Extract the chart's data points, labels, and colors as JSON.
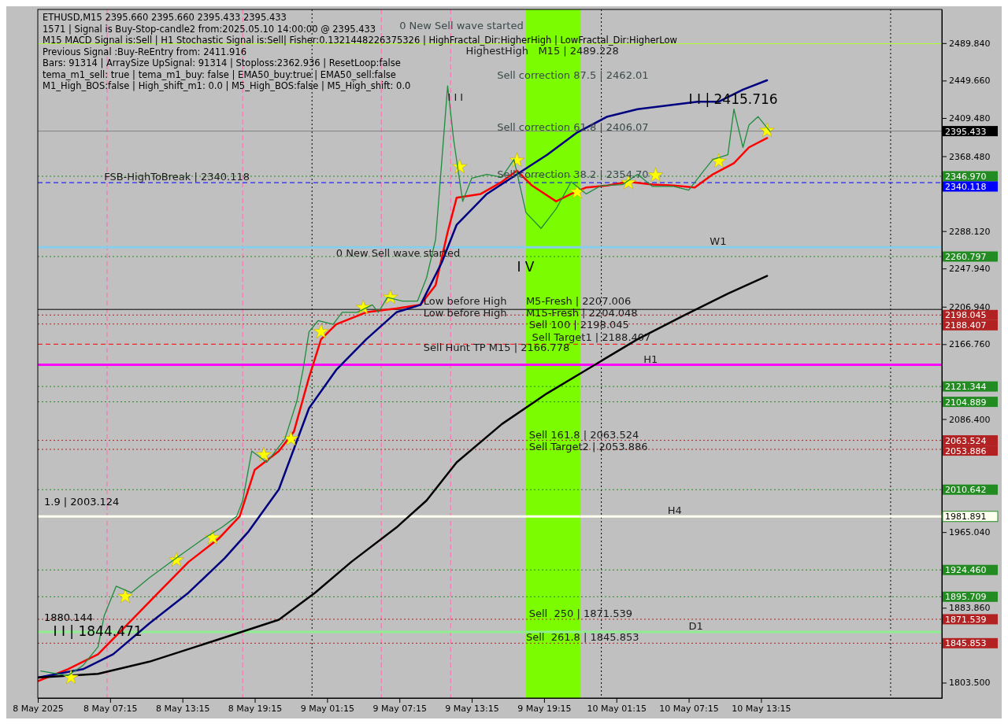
{
  "chart_data": {
    "type": "line",
    "title": "ETHUSD,M15  2395.660 2395.660 2395.433 2395.433",
    "xlim": [
      "2025-05-08T01:15",
      "2025-05-11T04:15"
    ],
    "xticks": [
      {
        "value": "2025-05-08T01:15",
        "label": "8 May 2025"
      },
      {
        "value": "2025-05-08T07:15",
        "label": "8 May 07:15"
      },
      {
        "value": "2025-05-08T13:15",
        "label": "8 May 13:15"
      },
      {
        "value": "2025-05-08T19:15",
        "label": "8 May 19:15"
      },
      {
        "value": "2025-05-09T01:15",
        "label": "9 May 01:15"
      },
      {
        "value": "2025-05-09T07:15",
        "label": "9 May 07:15"
      },
      {
        "value": "2025-05-09T13:15",
        "label": "9 May 13:15"
      },
      {
        "value": "2025-05-09T19:15",
        "label": "9 May 19:15"
      },
      {
        "value": "2025-05-10T01:15",
        "label": "10 May 01:15"
      },
      {
        "value": "2025-05-10T07:15",
        "label": "10 May 07:15"
      },
      {
        "value": "2025-05-10T13:15",
        "label": "10 May 13:15"
      }
    ],
    "ylim": [
      1787,
      2526
    ],
    "yticks": [
      {
        "value": 2489.84,
        "label": "2489.840"
      },
      {
        "value": 2449.66,
        "label": "2449.660"
      },
      {
        "value": 2409.48,
        "label": "2409.480"
      },
      {
        "value": 2368.48,
        "label": "2368.480"
      },
      {
        "value": 2288.12,
        "label": "2288.120"
      },
      {
        "value": 2247.94,
        "label": "2247.940"
      },
      {
        "value": 2206.94,
        "label": "2206.940"
      },
      {
        "value": 2166.76,
        "label": "2166.760"
      },
      {
        "value": 2086.4,
        "label": "2086.400"
      },
      {
        "value": 1965.04,
        "label": "1965.040"
      },
      {
        "value": 1883.86,
        "label": "1883.860"
      },
      {
        "value": 1803.5,
        "label": "1803.500"
      }
    ],
    "grid": false,
    "series": [
      {
        "color": "#1e8c3c",
        "x": [
          "2025-05-08T01:30",
          "2025-05-08T03:45",
          "2025-05-08T05:00",
          "2025-05-08T06:15",
          "2025-05-08T06:45",
          "2025-05-08T07:45",
          "2025-05-08T09:00",
          "2025-05-08T10:30",
          "2025-05-08T12:30",
          "2025-05-08T15:00",
          "2025-05-08T16:30",
          "2025-05-08T17:45",
          "2025-05-08T18:15",
          "2025-05-08T19:00",
          "2025-05-08T20:15",
          "2025-05-08T21:45",
          "2025-05-08T22:45",
          "2025-05-08T23:15",
          "2025-05-08T23:45",
          "2025-05-09T00:30",
          "2025-05-09T01:45",
          "2025-05-09T02:30",
          "2025-05-09T03:45",
          "2025-05-09T05:00",
          "2025-05-09T05:30",
          "2025-05-09T06:15",
          "2025-05-09T07:30",
          "2025-05-09T08:45",
          "2025-05-09T09:30",
          "2025-05-09T10:15",
          "2025-05-09T10:45",
          "2025-05-09T11:15",
          "2025-05-09T11:45",
          "2025-05-09T12:30",
          "2025-05-09T13:15",
          "2025-05-09T14:30",
          "2025-05-09T15:45",
          "2025-05-09T16:45",
          "2025-05-09T17:45",
          "2025-05-09T19:00",
          "2025-05-09T20:15",
          "2025-05-09T21:30",
          "2025-05-09T22:45",
          "2025-05-10T00:00",
          "2025-05-10T01:45",
          "2025-05-10T03:00",
          "2025-05-10T04:15",
          "2025-05-10T06:00",
          "2025-05-10T07:15",
          "2025-05-10T08:30",
          "2025-05-10T09:15",
          "2025-05-10T10:30",
          "2025-05-10T11:00",
          "2025-05-10T11:45",
          "2025-05-10T12:15",
          "2025-05-10T13:00",
          "2025-05-10T14:00"
        ],
        "values": [
          1816,
          1811,
          1822,
          1842,
          1875,
          1907,
          1900,
          1916,
          1935,
          1958,
          1970,
          1982,
          1999,
          2052,
          2040,
          2065,
          2106,
          2139,
          2180,
          2192,
          2188,
          2201,
          2201,
          2209,
          2201,
          2217,
          2213,
          2213,
          2238,
          2279,
          2361,
          2444,
          2386,
          2320,
          2345,
          2349,
          2346,
          2365,
          2308,
          2291,
          2312,
          2341,
          2328,
          2337,
          2338,
          2349,
          2336,
          2336,
          2332,
          2353,
          2365,
          2370,
          2419,
          2378,
          2402,
          2411,
          2395
        ]
      },
      {
        "color": "#ff0000",
        "x": [
          "2025-05-08T01:15",
          "2025-05-08T03:45",
          "2025-05-08T06:15",
          "2025-05-08T08:45",
          "2025-05-08T11:15",
          "2025-05-08T13:45",
          "2025-05-08T16:15",
          "2025-05-08T18:00",
          "2025-05-08T19:15",
          "2025-05-08T21:15",
          "2025-05-08T22:30",
          "2025-05-08T23:45",
          "2025-05-09T00:45",
          "2025-05-09T02:00",
          "2025-05-09T04:30",
          "2025-05-09T07:00",
          "2025-05-09T09:00",
          "2025-05-09T10:15",
          "2025-05-09T11:15",
          "2025-05-09T12:00",
          "2025-05-09T14:00",
          "2025-05-09T15:45",
          "2025-05-09T17:00",
          "2025-05-09T18:15",
          "2025-05-09T20:15",
          "2025-05-09T21:30",
          "2025-05-09T22:45",
          "2025-05-10T00:30",
          "2025-05-10T02:15",
          "2025-05-10T04:15",
          "2025-05-10T06:00",
          "2025-05-10T07:45",
          "2025-05-10T09:15",
          "2025-05-10T11:00",
          "2025-05-10T12:15",
          "2025-05-10T13:45"
        ],
        "values": [
          1805,
          1818,
          1834,
          1867,
          1900,
          1933,
          1958,
          1982,
          2032,
          2052,
          2073,
          2131,
          2172,
          2188,
          2201,
          2205,
          2209,
          2230,
          2287,
          2324,
          2328,
          2341,
          2353,
          2337,
          2320,
          2328,
          2335,
          2337,
          2341,
          2338,
          2337,
          2335,
          2349,
          2361,
          2378,
          2388
        ]
      },
      {
        "color": "#000080",
        "x": [
          "2025-05-08T01:15",
          "2025-05-08T05:00",
          "2025-05-08T07:30",
          "2025-05-08T10:30",
          "2025-05-08T13:45",
          "2025-05-08T16:45",
          "2025-05-08T18:45",
          "2025-05-08T21:15",
          "2025-05-08T23:45",
          "2025-05-09T02:00",
          "2025-05-09T04:30",
          "2025-05-09T07:00",
          "2025-05-09T09:00",
          "2025-05-09T10:45",
          "2025-05-09T12:00",
          "2025-05-09T14:30",
          "2025-05-09T17:00",
          "2025-05-09T19:30",
          "2025-05-09T22:00",
          "2025-05-10T00:30",
          "2025-05-10T03:00",
          "2025-05-10T05:30",
          "2025-05-10T08:00",
          "2025-05-10T09:45",
          "2025-05-10T11:45",
          "2025-05-10T13:45"
        ],
        "values": [
          1809,
          1818,
          1834,
          1867,
          1900,
          1937,
          1966,
          2011,
          2098,
          2139,
          2172,
          2201,
          2209,
          2254,
          2295,
          2328,
          2349,
          2370,
          2394,
          2411,
          2419,
          2423,
          2427,
          2427,
          2440,
          2450
        ]
      },
      {
        "color": "#000000",
        "x": [
          "2025-05-08T01:15",
          "2025-05-08T06:15",
          "2025-05-08T10:30",
          "2025-05-08T16:45",
          "2025-05-08T21:15",
          "2025-05-09T00:15",
          "2025-05-09T03:15",
          "2025-05-09T07:00",
          "2025-05-09T09:30",
          "2025-05-09T12:00",
          "2025-05-09T15:45",
          "2025-05-09T19:30",
          "2025-05-09T23:15",
          "2025-05-10T03:00",
          "2025-05-10T06:45",
          "2025-05-10T10:30",
          "2025-05-10T13:45"
        ],
        "values": [
          1809,
          1813,
          1826,
          1852,
          1871,
          1900,
          1933,
          1970,
          1999,
          2040,
          2081,
          2114,
          2143,
          2172,
          2197,
          2221,
          2240
        ]
      },
      {
        "type": "scatter",
        "marker": "star",
        "color": "#ffff00",
        "x": [
          "2025-05-08T04:00",
          "2025-05-08T08:30",
          "2025-05-08T12:45",
          "2025-05-08T15:45",
          "2025-05-08T20:00",
          "2025-05-08T22:15",
          "2025-05-09T00:45",
          "2025-05-09T04:15",
          "2025-05-09T06:30",
          "2025-05-09T12:15",
          "2025-05-09T17:00",
          "2025-05-09T22:00",
          "2025-05-10T02:15",
          "2025-05-10T04:30",
          "2025-05-10T09:45",
          "2025-05-10T13:45"
        ],
        "values": [
          1809,
          1896,
          1935,
          1959,
          2048,
          2065,
          2180,
          2206,
          2217,
          2357,
          2364,
          2330,
          2340,
          2348,
          2363,
          2396
        ]
      }
    ],
    "bands": [
      {
        "axis": "x",
        "from": "2025-05-09T17:45",
        "to": "2025-05-09T22:15",
        "color": "#7cfc00"
      }
    ],
    "ref_lines": [
      {
        "axis": "x",
        "value": "2025-05-08T07:00",
        "color": "#ff69b4",
        "line_style": "dashed"
      },
      {
        "axis": "x",
        "value": "2025-05-08T18:15",
        "color": "#ff69b4",
        "line_style": "dashed"
      },
      {
        "axis": "x",
        "value": "2025-05-09T05:45",
        "color": "#ff69b4",
        "line_style": "dashed"
      },
      {
        "axis": "x",
        "value": "2025-05-09T11:30",
        "color": "#ff69b4",
        "line_style": "dashed"
      },
      {
        "axis": "x",
        "value": "2025-05-09T00:00",
        "color": "#000000",
        "line_style": "dotted"
      },
      {
        "axis": "x",
        "value": "2025-05-10T00:00",
        "color": "#000000",
        "line_style": "dotted"
      },
      {
        "axis": "x",
        "value": "2025-05-11T00:00",
        "color": "#000000",
        "line_style": "dotted"
      },
      {
        "axis": "y",
        "value": 2489.228,
        "color": "#adff2f",
        "line_style": "solid"
      },
      {
        "axis": "y",
        "value": 2395.433,
        "label": "2395.433",
        "color": "#808080",
        "line_style": "solid"
      },
      {
        "axis": "y",
        "value": 2346.97,
        "label": "2346.970",
        "color": "#228b22",
        "line_style": "dotted"
      },
      {
        "axis": "y",
        "value": 2340.118,
        "label": "2340.118",
        "color": "#0000ff",
        "line_style": "dashed"
      },
      {
        "axis": "y",
        "value": 2270.7,
        "color": "#87ceeb",
        "line_style": "solid"
      },
      {
        "axis": "y",
        "value": 2260.797,
        "label": "2260.797",
        "color": "#228b22",
        "line_style": "dotted"
      },
      {
        "axis": "y",
        "value": 2204.048,
        "color": "#000000",
        "line_style": "solid"
      },
      {
        "axis": "y",
        "value": 2198.045,
        "label": "2198.045",
        "color": "#b22222",
        "line_style": "dotted"
      },
      {
        "axis": "y",
        "value": 2188.407,
        "label": "2188.407",
        "color": "#b22222",
        "line_style": "dotted"
      },
      {
        "axis": "y",
        "value": 2166.778,
        "color": "#ff0000",
        "line_style": "dashed"
      },
      {
        "axis": "y",
        "value": 2144.6,
        "color": "#ff00ff",
        "line_style": "solid"
      },
      {
        "axis": "y",
        "value": 2121.344,
        "label": "2121.344",
        "color": "#228b22",
        "line_style": "dotted"
      },
      {
        "axis": "y",
        "value": 2104.889,
        "label": "2104.889",
        "color": "#228b22",
        "line_style": "dotted"
      },
      {
        "axis": "y",
        "value": 2063.524,
        "label": "2063.524",
        "color": "#b22222",
        "line_style": "dotted"
      },
      {
        "axis": "y",
        "value": 2053.886,
        "label": "2053.886",
        "color": "#b22222",
        "line_style": "dotted"
      },
      {
        "axis": "y",
        "value": 2010.642,
        "label": "2010.642",
        "color": "#228b22",
        "line_style": "dotted"
      },
      {
        "axis": "y",
        "value": 1981.891,
        "label": "1981.891",
        "color": "#fffff0",
        "line_style": "solid"
      },
      {
        "axis": "y",
        "value": 1924.46,
        "label": "1924.460",
        "color": "#228b22",
        "line_style": "dotted"
      },
      {
        "axis": "y",
        "value": 1895.709,
        "label": "1895.709",
        "color": "#228b22",
        "line_style": "dotted"
      },
      {
        "axis": "y",
        "value": 1871.539,
        "label": "1871.539",
        "color": "#b22222",
        "line_style": "dotted"
      },
      {
        "axis": "y",
        "value": 1857.9,
        "color": "#90ee90",
        "line_style": "solid"
      },
      {
        "axis": "y",
        "value": 1845.853,
        "label": "1845.853",
        "color": "#b22222",
        "line_style": "dotted"
      }
    ],
    "annotations": [
      "1571 | Signal is Buy-Stop-candle2 from:2025.05.10 14:00:00 @ 2395.433",
      "M15 MACD Signal is:Sell | H1 Stochastic Signal is:Sell| Fisher:0.1321448226375326 | HighFractal_Dir:HigherHigh | LowFractal_Dir:HigherLow",
      "Previous Signal :Buy-ReEntry from: 2411.916",
      "Bars: 91314 | ArraySize UpSignal: 91314 | Stoploss:2362.936 | ResetLoop:false",
      "tema_m1_sell: true | tema_m1_buy: false | EMA50_buy:true | EMA50_sell:false",
      "M1_High_BOS:false | High_shift_m1: 0.0 | M5_High_BOS:false | M5_High_shift: 0.0",
      "0 New Sell wave started",
      "Sell correction 87.5 | 2462.01",
      "Sell correction 61.8 | 2406.07",
      "Sell correction 38.2 | 2354.70",
      "I I | 2415.716",
      "I V",
      "1.9 | 2003.124",
      "1880.144",
      "I I | 1844.471",
      {
        "text": "HighestHigh   M15 | 2489.228",
        "x": "2025-05-09T12:45",
        "y": 2489.228
      },
      {
        "text": "FSB-HighToBreak | 2340.118",
        "x": "2025-05-08T06:45",
        "y": 2340.118
      },
      {
        "text": "I I I",
        "x": "2025-05-09T11:15",
        "y": 2446
      },
      {
        "text": "W1",
        "x": "2025-05-10T09:00",
        "y": 2270.7
      },
      {
        "text": "0 New Sell wave started",
        "x": "2025-05-09T02:00",
        "y": 2258
      },
      {
        "text": "Low before High",
        "x": "2025-05-09T09:15",
        "y": 2207.006
      },
      {
        "text": "M5-Fresh | 2207.006",
        "x": "2025-05-09T17:45",
        "y": 2207.006
      },
      {
        "text": "Low before High",
        "x": "2025-05-09T09:15",
        "y": 2204.048
      },
      {
        "text": "M15-Fresh | 2204.048",
        "x": "2025-05-09T17:45",
        "y": 2204.048
      },
      {
        "text": "Sell 100 | 2198.045",
        "x": "2025-05-09T18:00",
        "y": 2198.045
      },
      {
        "text": "Sell Target1 | 2188.407",
        "x": "2025-05-09T18:15",
        "y": 2188.407
      },
      {
        "text": "Sell Hunt TP M15 | 2166.778",
        "x": "2025-05-09T09:15",
        "y": 2166.778
      },
      {
        "text": "H1",
        "x": "2025-05-10T03:30",
        "y": 2144.6
      },
      {
        "text": "Sell 161.8 | 2063.524",
        "x": "2025-05-09T18:00",
        "y": 2063.524
      },
      {
        "text": "Sell Target2 | 2053.886",
        "x": "2025-05-09T18:00",
        "y": 2053.886
      },
      {
        "text": "H4",
        "x": "2025-05-10T05:30",
        "y": 1981.891
      },
      {
        "text": "Sell  250 | 1871.539",
        "x": "2025-05-09T18:00",
        "y": 1871.539
      },
      {
        "text": "D1",
        "x": "2025-05-10T07:15",
        "y": 1857.9
      },
      {
        "text": "Sell  261.8 | 1845.853",
        "x": "2025-05-09T17:45",
        "y": 1845.853
      }
    ]
  }
}
